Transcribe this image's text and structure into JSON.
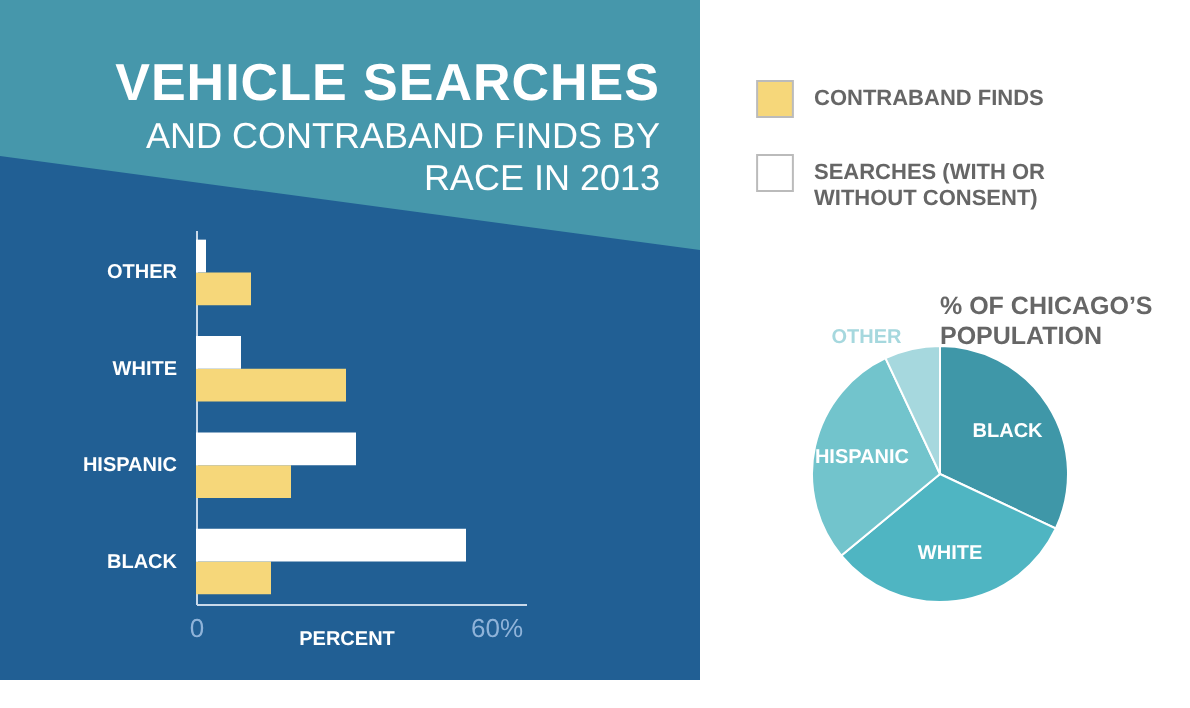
{
  "chart_data": [
    {
      "type": "bar",
      "orientation": "horizontal",
      "title": "VEHICLE SEARCHES",
      "subtitle": "AND CONTRABAND FINDS BY RACE IN 2013",
      "xlabel": "PERCENT",
      "categories": [
        "OTHER",
        "WHITE",
        "HISPANIC",
        "BLACK"
      ],
      "series": [
        {
          "name": "CONTRABAND FINDS",
          "color": "#f6d77a",
          "values": [
            11,
            30,
            19,
            15
          ]
        },
        {
          "name": "SEARCHES (WITH OR WITHOUT CONSENT)",
          "color": "#ffffff",
          "values": [
            2,
            9,
            32,
            54
          ]
        }
      ],
      "xlim": [
        0,
        66
      ],
      "xticks": [
        0,
        {
          "value": 60,
          "label": "60%"
        }
      ],
      "legend": "right"
    },
    {
      "type": "pie",
      "title": "% OF CHICAGO’S POPULATION",
      "categories": [
        "BLACK",
        "WHITE",
        "HISPANIC",
        "OTHER"
      ],
      "values": [
        32,
        32,
        29,
        7
      ],
      "colors": [
        "#3f97a8",
        "#4fb5c2",
        "#72c4cc",
        "#a6d8de"
      ]
    }
  ]
}
